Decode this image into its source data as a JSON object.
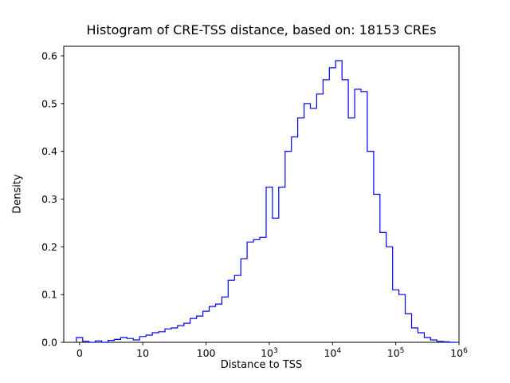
{
  "figure": {
    "background": "#ffffff"
  },
  "chart_data": {
    "type": "histogram",
    "title": "Histogram of CRE-TSS distance, based on: 18153 CREs",
    "xlabel": "Distance to TSS",
    "ylabel": "Density",
    "n_cres": 18153,
    "x_scale": "symlog",
    "grid": false,
    "legend": false,
    "line_color": "#0000ff",
    "axis_color": "#000000",
    "ylim": [
      0,
      0.62
    ],
    "y_ticks": [
      "0.0",
      "0.1",
      "0.2",
      "0.3",
      "0.4",
      "0.5",
      "0.6"
    ],
    "x_ticks": [
      {
        "label": "0",
        "t": 0.04
      },
      {
        "label": "10",
        "t": 0.2
      },
      {
        "label": "100",
        "t": 0.36
      },
      {
        "label": "10",
        "sup": "3",
        "t": 0.52
      },
      {
        "label": "10",
        "sup": "4",
        "t": 0.68
      },
      {
        "label": "10",
        "sup": "5",
        "t": 0.84
      },
      {
        "label": "10",
        "sup": "6",
        "t": 1.0
      }
    ],
    "bins": {
      "t_start": 0.032,
      "t_width": 0.016,
      "heights": [
        0.01,
        0.002,
        0.0,
        0.003,
        0.0,
        0.004,
        0.006,
        0.01,
        0.008,
        0.005,
        0.012,
        0.015,
        0.02,
        0.022,
        0.028,
        0.03,
        0.035,
        0.04,
        0.05,
        0.055,
        0.065,
        0.075,
        0.08,
        0.095,
        0.13,
        0.14,
        0.175,
        0.21,
        0.215,
        0.22,
        0.325,
        0.26,
        0.325,
        0.4,
        0.43,
        0.47,
        0.5,
        0.49,
        0.52,
        0.55,
        0.575,
        0.59,
        0.55,
        0.47,
        0.53,
        0.525,
        0.4,
        0.31,
        0.23,
        0.2,
        0.11,
        0.1,
        0.06,
        0.03,
        0.02,
        0.01,
        0.005,
        0.002,
        0.001,
        0.0
      ]
    }
  }
}
